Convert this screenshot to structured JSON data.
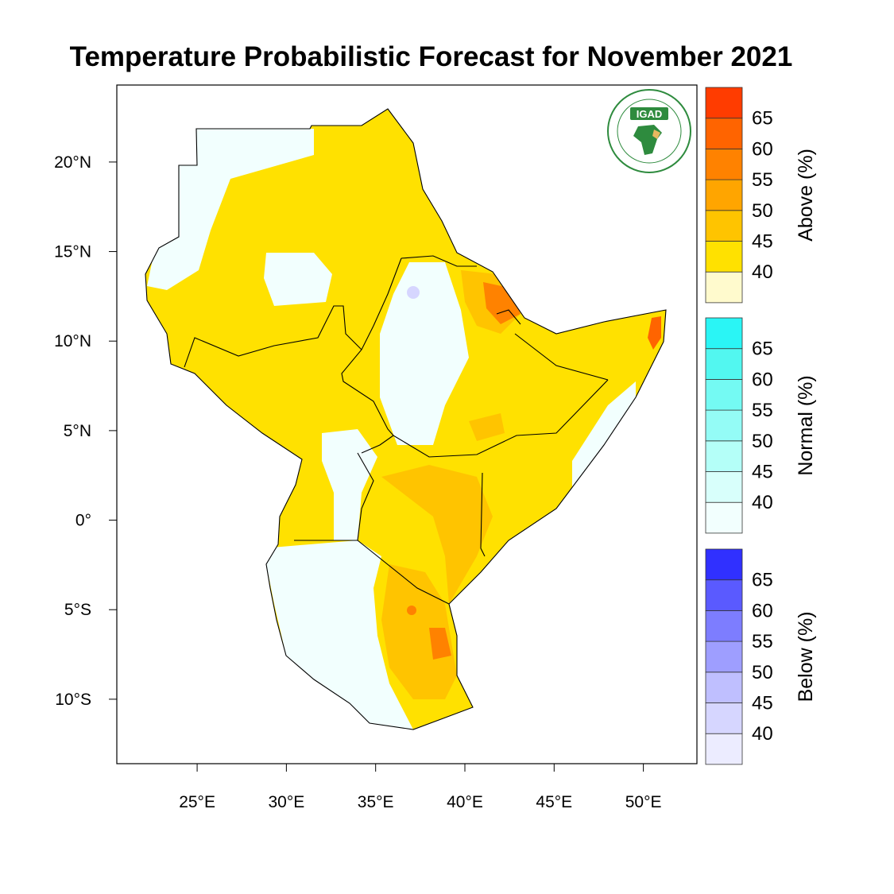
{
  "title": "Temperature Probabilistic Forecast for November 2021",
  "logo": {
    "text": "IGAD",
    "name": "igad-logo"
  },
  "map": {
    "lon_range": [
      20.5,
      53
    ],
    "lat_range": [
      -13.6,
      24.3
    ],
    "x_ticks": [
      {
        "value": 25,
        "label": "25°E"
      },
      {
        "value": 30,
        "label": "30°E"
      },
      {
        "value": 35,
        "label": "35°E"
      },
      {
        "value": 40,
        "label": "40°E"
      },
      {
        "value": 45,
        "label": "45°E"
      },
      {
        "value": 50,
        "label": "50°E"
      }
    ],
    "y_ticks": [
      {
        "value": 20,
        "label": "20°N"
      },
      {
        "value": 15,
        "label": "15°N"
      },
      {
        "value": 10,
        "label": "10°N"
      },
      {
        "value": 5,
        "label": "5°N"
      },
      {
        "value": 0,
        "label": "0°"
      },
      {
        "value": -5,
        "label": "5°S"
      },
      {
        "value": -10,
        "label": "10°S"
      }
    ]
  },
  "legends": [
    {
      "label": "Above (%)",
      "name": "above-legend",
      "levels": [
        "40",
        "45",
        "50",
        "55",
        "60",
        "65"
      ],
      "colors": [
        "#fffacd",
        "#ffe100",
        "#ffc400",
        "#ffa500",
        "#ff8200",
        "#ff6400",
        "#ff3c00"
      ]
    },
    {
      "label": "Normal (%)",
      "name": "normal-legend",
      "levels": [
        "40",
        "45",
        "50",
        "55",
        "60",
        "65"
      ],
      "colors": [
        "#f2fffe",
        "#d8fffb",
        "#b4fff8",
        "#94fcf6",
        "#74faf3",
        "#52f7f0",
        "#2af5f5"
      ]
    },
    {
      "label": "Below (%)",
      "name": "below-legend",
      "levels": [
        "40",
        "45",
        "50",
        "55",
        "60",
        "65"
      ],
      "colors": [
        "#ececff",
        "#d6d6ff",
        "#bfbfff",
        "#9e9eff",
        "#7d7dff",
        "#5a5aff",
        "#3030ff"
      ]
    }
  ]
}
